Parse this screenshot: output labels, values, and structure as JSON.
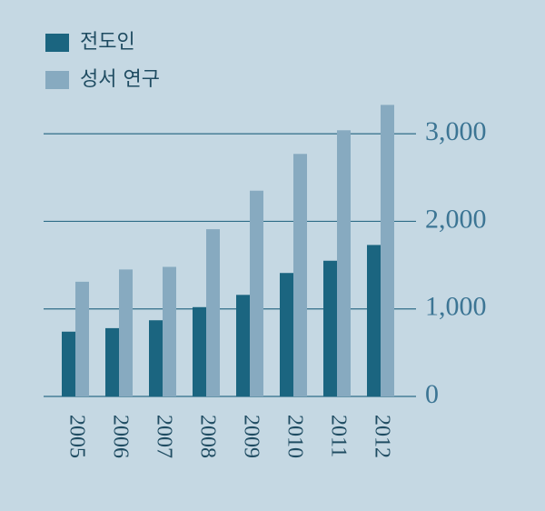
{
  "chart_data": {
    "type": "bar",
    "categories": [
      "2005",
      "2006",
      "2007",
      "2008",
      "2009",
      "2010",
      "2011",
      "2012"
    ],
    "series": [
      {
        "name": "전도인",
        "color": "#1b6580",
        "values": [
          740,
          780,
          870,
          1020,
          1160,
          1410,
          1550,
          1730
        ]
      },
      {
        "name": "성서 연구",
        "color": "#87aac0",
        "values": [
          1310,
          1450,
          1480,
          1910,
          2350,
          2770,
          3040,
          3330
        ]
      }
    ],
    "ylim": [
      0,
      3500
    ],
    "yticks": [
      0,
      {
        "value": 1000,
        "label": "1,000"
      },
      {
        "value": 2000,
        "label": "2,000"
      },
      {
        "value": 3000,
        "label": "3,000"
      }
    ],
    "grid": true
  }
}
